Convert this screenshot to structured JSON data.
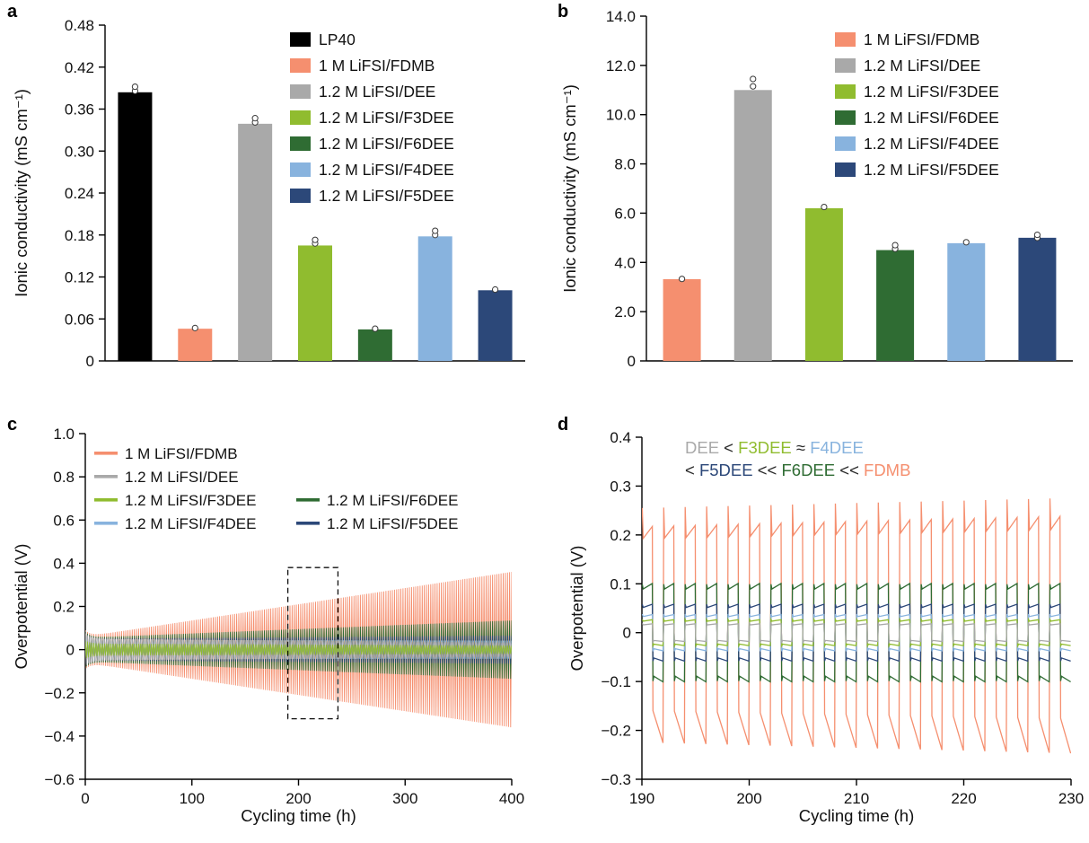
{
  "panels": {
    "a": {
      "letter": "a"
    },
    "b": {
      "letter": "b"
    },
    "c": {
      "letter": "c"
    },
    "d": {
      "letter": "d"
    }
  },
  "chart_data": [
    {
      "id": "a",
      "type": "bar",
      "ylabel": "Ionic conductivity (mS cm⁻¹)",
      "ylim": [
        0,
        0.48
      ],
      "yticks": [
        0.48,
        0.42,
        0.36,
        0.3,
        0.24,
        0.18,
        0.12,
        0.06,
        0
      ],
      "ytick_labels": [
        "0.48",
        "0.42",
        "0.36",
        "0.30",
        "0.24",
        "0.18",
        "0.12",
        "0.06",
        "0"
      ],
      "categories": [
        "LP40",
        "1 M LiFSI/FDMB",
        "1.2 M LiFSI/DEE",
        "1.2 M LiFSI/F3DEE",
        "1.2 M LiFSI/F6DEE",
        "1.2 M LiFSI/F4DEE",
        "1.2 M LiFSI/F5DEE"
      ],
      "values": [
        0.384,
        0.046,
        0.339,
        0.165,
        0.045,
        0.178,
        0.101
      ],
      "points": [
        [
          0.386,
          0.392
        ],
        [
          0.047
        ],
        [
          0.341,
          0.347
        ],
        [
          0.168,
          0.173
        ],
        [
          0.046
        ],
        [
          0.18,
          0.186
        ],
        [
          0.102
        ]
      ],
      "colors": [
        "#000000",
        "#F58F6F",
        "#A9A9A9",
        "#90BC2F",
        "#2F6C33",
        "#88B3DE",
        "#2C4879"
      ],
      "legend_position": "top-right",
      "grid": false
    },
    {
      "id": "b",
      "type": "bar",
      "ylabel": "Ionic conductivity (mS cm⁻¹)",
      "ylim": [
        0,
        14
      ],
      "yticks": [
        14,
        12,
        10,
        8,
        6,
        4,
        2,
        0
      ],
      "ytick_labels": [
        "14.0",
        "12.0",
        "10.0",
        "8.0",
        "6.0",
        "4.0",
        "2.0",
        "0"
      ],
      "categories": [
        "1 M LiFSI/FDMB",
        "1.2 M LiFSI/DEE",
        "1.2 M LiFSI/F3DEE",
        "1.2 M LiFSI/F6DEE",
        "1.2 M LiFSI/F4DEE",
        "1.2 M LiFSI/F5DEE"
      ],
      "values": [
        3.32,
        11.0,
        6.2,
        4.5,
        4.78,
        5.0
      ],
      "points": [
        [
          3.33
        ],
        [
          11.15,
          11.45
        ],
        [
          6.25
        ],
        [
          4.55,
          4.7
        ],
        [
          4.82
        ],
        [
          5.0,
          5.12
        ]
      ],
      "colors": [
        "#F58F6F",
        "#A9A9A9",
        "#90BC2F",
        "#2F6C33",
        "#88B3DE",
        "#2C4879"
      ],
      "legend_position": "top-right",
      "grid": false
    },
    {
      "id": "c",
      "type": "line",
      "xlabel": "Cycling time (h)",
      "ylabel": "Overpotential (V)",
      "xlim": [
        0,
        400
      ],
      "xticks": [
        0,
        100,
        200,
        300,
        400
      ],
      "xtick_labels": [
        "0",
        "100",
        "200",
        "300",
        "400"
      ],
      "ylim": [
        -0.6,
        1.0
      ],
      "yticks": [
        1.0,
        0.8,
        0.6,
        0.4,
        0.2,
        0,
        -0.2,
        -0.4,
        -0.6
      ],
      "ytick_labels": [
        "1.0",
        "0.8",
        "0.6",
        "0.4",
        "0.2",
        "0",
        "−0.2",
        "−0.4",
        "−0.6"
      ],
      "cycle_period_h": 2,
      "series": [
        {
          "name": "1 M LiFSI/FDMB",
          "color": "#F58F6F",
          "amplitude_start": 0.06,
          "amplitude_end": 0.36
        },
        {
          "name": "1.2 M LiFSI/F6DEE",
          "color": "#2F6C33",
          "amplitude_start": 0.055,
          "amplitude_end": 0.135
        },
        {
          "name": "1.2 M LiFSI/F5DEE",
          "color": "#2C4879",
          "amplitude_start": 0.05,
          "amplitude_end": 0.065
        },
        {
          "name": "1.2 M LiFSI/F4DEE",
          "color": "#88B3DE",
          "amplitude_start": 0.045,
          "amplitude_end": 0.042
        },
        {
          "name": "1.2 M LiFSI/DEE",
          "color": "#A9A9A9",
          "amplitude_start": 0.05,
          "amplitude_end": 0.033
        },
        {
          "name": "1.2 M LiFSI/F3DEE",
          "color": "#90BC2F",
          "amplitude_start": 0.028,
          "amplitude_end": 0.02
        }
      ],
      "legend": [
        {
          "label": "1 M LiFSI/FDMB",
          "color": "#F58F6F",
          "row": 0,
          "col": 0
        },
        {
          "label": "1.2 M LiFSI/DEE",
          "color": "#A9A9A9",
          "row": 1,
          "col": 0
        },
        {
          "label": "1.2 M LiFSI/F3DEE",
          "color": "#90BC2F",
          "row": 2,
          "col": 0
        },
        {
          "label": "1.2 M LiFSI/F6DEE",
          "color": "#2F6C33",
          "row": 2,
          "col": 1
        },
        {
          "label": "1.2 M LiFSI/F4DEE",
          "color": "#88B3DE",
          "row": 3,
          "col": 0
        },
        {
          "label": "1.2 M LiFSI/F5DEE",
          "color": "#2C4879",
          "row": 3,
          "col": 1
        }
      ],
      "zoom_box": {
        "x0": 190,
        "x1": 237,
        "y0": -0.32,
        "y1": 0.38
      }
    },
    {
      "id": "d",
      "type": "line",
      "xlabel": "Cycling time (h)",
      "ylabel": "Overpotential (V)",
      "xlim": [
        190,
        230
      ],
      "xticks": [
        190,
        200,
        210,
        220,
        230
      ],
      "xtick_labels": [
        "190",
        "200",
        "210",
        "220",
        "230"
      ],
      "ylim": [
        -0.3,
        0.4
      ],
      "yticks": [
        0.4,
        0.3,
        0.2,
        0.1,
        0,
        -0.1,
        -0.2,
        -0.3
      ],
      "ytick_labels": [
        "0.4",
        "0.3",
        "0.2",
        "0.1",
        "0",
        "−0.1",
        "−0.2",
        "−0.3"
      ],
      "cycle_period_h": 2,
      "series": [
        {
          "name": "1 M LiFSI/FDMB",
          "color": "#F58F6F",
          "amplitude": 0.205,
          "transition_spike": 0.05
        },
        {
          "name": "1.2 M LiFSI/F6DEE",
          "color": "#2F6C33",
          "amplitude": 0.095,
          "transition_spike": 0.004
        },
        {
          "name": "1.2 M LiFSI/F5DEE",
          "color": "#2C4879",
          "amplitude": 0.055,
          "transition_spike": 0.003
        },
        {
          "name": "1.2 M LiFSI/F4DEE",
          "color": "#88B3DE",
          "amplitude": 0.035,
          "transition_spike": 0.003
        },
        {
          "name": "1.2 M LiFSI/F3DEE",
          "color": "#90BC2F",
          "amplitude": 0.025,
          "transition_spike": 0.002
        },
        {
          "name": "1.2 M LiFSI/DEE",
          "color": "#A9A9A9",
          "amplitude": 0.017,
          "transition_spike": 0.002
        }
      ],
      "annotation_lines": [
        [
          {
            "text": "DEE",
            "color": "#A9A9A9"
          },
          {
            "text": " < ",
            "color": "#2b2b2b"
          },
          {
            "text": "F3DEE",
            "color": "#90BC2F"
          },
          {
            "text": " ≈ ",
            "color": "#2b2b2b"
          },
          {
            "text": "F4DEE",
            "color": "#88B3DE"
          }
        ],
        [
          {
            "text": "< ",
            "color": "#2b2b2b"
          },
          {
            "text": "F5DEE",
            "color": "#2C4879"
          },
          {
            "text": " << ",
            "color": "#2b2b2b"
          },
          {
            "text": "F6DEE",
            "color": "#2F6C33"
          },
          {
            "text": " << ",
            "color": "#2b2b2b"
          },
          {
            "text": "FDMB",
            "color": "#F58F6F"
          }
        ]
      ]
    }
  ]
}
